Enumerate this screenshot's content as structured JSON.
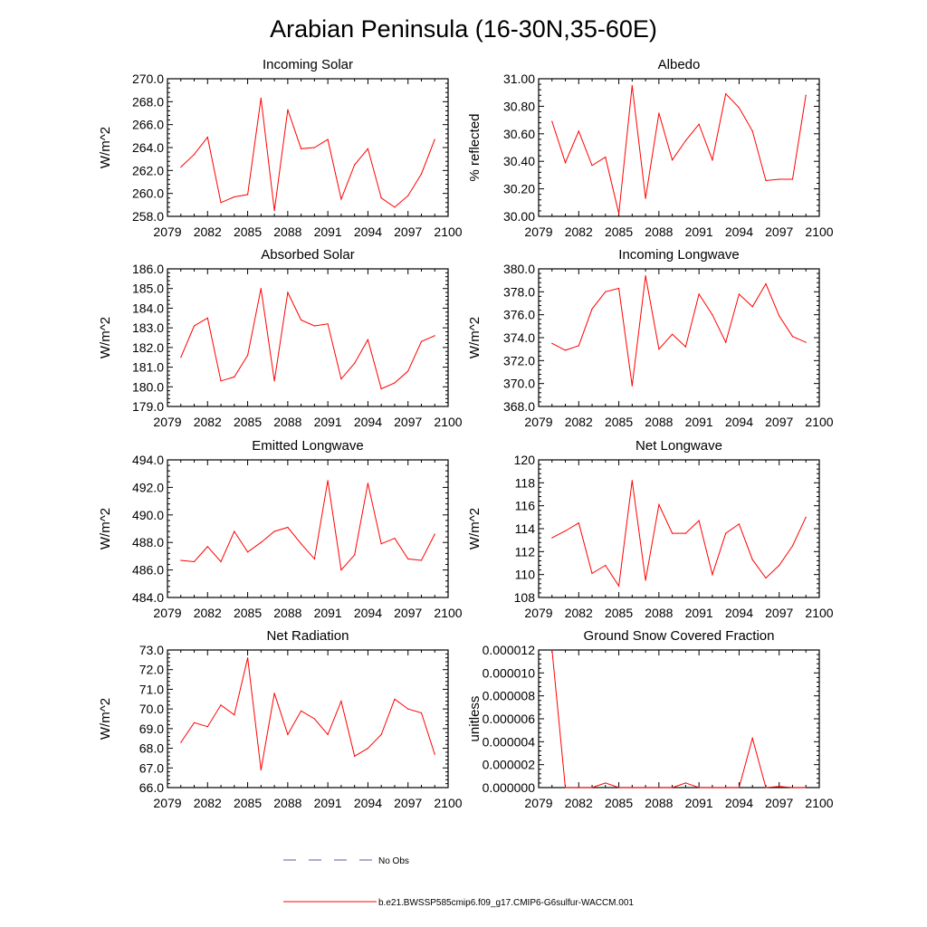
{
  "title": "Arabian Peninsula (16-30N,35-60E)",
  "legend": [
    {
      "label": "No Obs",
      "color": "#5a5aa8",
      "style": "dashed"
    },
    {
      "label": "b.e21.BWSSP585cmip6.f09_g17.CMIP6-G6sulfur-WACCM.001",
      "color": "#ff0000",
      "style": "solid"
    }
  ],
  "chart_data": [
    {
      "type": "line",
      "title": "Incoming Solar",
      "ylabel": "W/m^2",
      "xlim": [
        2079,
        2100
      ],
      "ylim": [
        258,
        270
      ],
      "xticks": [
        "2079",
        "2082",
        "2085",
        "2088",
        "2091",
        "2094",
        "2097",
        "2100"
      ],
      "yticks": [
        "258.0",
        "260.0",
        "262.0",
        "264.0",
        "266.0",
        "268.0",
        "270.0"
      ],
      "x": [
        2080,
        2081,
        2082,
        2083,
        2084,
        2085,
        2086,
        2087,
        2088,
        2089,
        2090,
        2091,
        2092,
        2093,
        2094,
        2095,
        2096,
        2097,
        2098,
        2099
      ],
      "series": [
        {
          "color": "#ff0000",
          "values": [
            262.3,
            263.4,
            264.9,
            259.2,
            259.7,
            259.9,
            268.3,
            258.5,
            267.3,
            263.9,
            264.0,
            264.7,
            259.5,
            262.5,
            263.9,
            259.6,
            258.8,
            259.8,
            261.7,
            264.7
          ]
        }
      ]
    },
    {
      "type": "line",
      "title": "Albedo",
      "ylabel": "% reflected",
      "xlim": [
        2079,
        2100
      ],
      "ylim": [
        30.0,
        31.0
      ],
      "xticks": [
        "2079",
        "2082",
        "2085",
        "2088",
        "2091",
        "2094",
        "2097",
        "2100"
      ],
      "yticks": [
        "30.00",
        "30.20",
        "30.40",
        "30.60",
        "30.80",
        "31.00"
      ],
      "x": [
        2080,
        2081,
        2082,
        2083,
        2084,
        2085,
        2086,
        2087,
        2088,
        2089,
        2090,
        2091,
        2092,
        2093,
        2094,
        2095,
        2096,
        2097,
        2098,
        2099
      ],
      "series": [
        {
          "color": "#ff0000",
          "values": [
            30.69,
            30.39,
            30.62,
            30.37,
            30.43,
            30.02,
            30.95,
            30.13,
            30.75,
            30.41,
            30.55,
            30.67,
            30.41,
            30.89,
            30.79,
            30.62,
            30.26,
            30.27,
            30.27,
            30.88
          ]
        }
      ]
    },
    {
      "type": "line",
      "title": "Absorbed Solar",
      "ylabel": "W/m^2",
      "xlim": [
        2079,
        2100
      ],
      "ylim": [
        179.0,
        186.0
      ],
      "xticks": [
        "2079",
        "2082",
        "2085",
        "2088",
        "2091",
        "2094",
        "2097",
        "2100"
      ],
      "yticks": [
        "179.0",
        "180.0",
        "181.0",
        "182.0",
        "183.0",
        "184.0",
        "185.0",
        "186.0"
      ],
      "x": [
        2080,
        2081,
        2082,
        2083,
        2084,
        2085,
        2086,
        2087,
        2088,
        2089,
        2090,
        2091,
        2092,
        2093,
        2094,
        2095,
        2096,
        2097,
        2098,
        2099
      ],
      "series": [
        {
          "color": "#ff0000",
          "values": [
            181.5,
            183.1,
            183.5,
            180.3,
            180.5,
            181.6,
            185.0,
            180.3,
            184.8,
            183.4,
            183.1,
            183.2,
            180.4,
            181.2,
            182.4,
            179.9,
            180.2,
            180.8,
            182.3,
            182.6
          ]
        }
      ]
    },
    {
      "type": "line",
      "title": "Incoming Longwave",
      "ylabel": "W/m^2",
      "xlim": [
        2079,
        2100
      ],
      "ylim": [
        368.0,
        380.0
      ],
      "xticks": [
        "2079",
        "2082",
        "2085",
        "2088",
        "2091",
        "2094",
        "2097",
        "2100"
      ],
      "yticks": [
        "368.0",
        "370.0",
        "372.0",
        "374.0",
        "376.0",
        "378.0",
        "380.0"
      ],
      "x": [
        2080,
        2081,
        2082,
        2083,
        2084,
        2085,
        2086,
        2087,
        2088,
        2089,
        2090,
        2091,
        2092,
        2093,
        2094,
        2095,
        2096,
        2097,
        2098,
        2099
      ],
      "series": [
        {
          "color": "#ff0000",
          "values": [
            373.5,
            372.9,
            373.3,
            376.5,
            378.0,
            378.3,
            369.8,
            379.4,
            373.0,
            374.3,
            373.2,
            377.8,
            376.0,
            373.6,
            377.8,
            376.7,
            378.7,
            375.9,
            374.1,
            373.6
          ]
        }
      ]
    },
    {
      "type": "line",
      "title": "Emitted Longwave",
      "ylabel": "W/m^2",
      "xlim": [
        2079,
        2100
      ],
      "ylim": [
        484.0,
        494.0
      ],
      "xticks": [
        "2079",
        "2082",
        "2085",
        "2088",
        "2091",
        "2094",
        "2097",
        "2100"
      ],
      "yticks": [
        "484.0",
        "486.0",
        "488.0",
        "490.0",
        "492.0",
        "494.0"
      ],
      "x": [
        2080,
        2081,
        2082,
        2083,
        2084,
        2085,
        2086,
        2087,
        2088,
        2089,
        2090,
        2091,
        2092,
        2093,
        2094,
        2095,
        2096,
        2097,
        2098,
        2099
      ],
      "series": [
        {
          "color": "#ff0000",
          "values": [
            486.7,
            486.6,
            487.7,
            486.6,
            488.8,
            487.3,
            488.0,
            488.8,
            489.1,
            487.9,
            486.8,
            492.5,
            486.0,
            487.1,
            492.3,
            487.9,
            488.3,
            486.8,
            486.7,
            488.6
          ]
        }
      ]
    },
    {
      "type": "line",
      "title": "Net Longwave",
      "ylabel": "W/m^2",
      "xlim": [
        2079,
        2100
      ],
      "ylim": [
        108,
        120
      ],
      "xticks": [
        "2079",
        "2082",
        "2085",
        "2088",
        "2091",
        "2094",
        "2097",
        "2100"
      ],
      "yticks": [
        "108",
        "110",
        "112",
        "114",
        "116",
        "118",
        "120"
      ],
      "x": [
        2080,
        2081,
        2082,
        2083,
        2084,
        2085,
        2086,
        2087,
        2088,
        2089,
        2090,
        2091,
        2092,
        2093,
        2094,
        2095,
        2096,
        2097,
        2098,
        2099
      ],
      "series": [
        {
          "color": "#ff0000",
          "values": [
            113.2,
            113.8,
            114.5,
            110.1,
            110.8,
            109.0,
            118.2,
            109.5,
            116.1,
            113.6,
            113.6,
            114.7,
            110.0,
            113.6,
            114.4,
            111.3,
            109.7,
            110.8,
            112.5,
            115.0
          ]
        }
      ]
    },
    {
      "type": "line",
      "title": "Net Radiation",
      "ylabel": "W/m^2",
      "xlim": [
        2079,
        2100
      ],
      "ylim": [
        66.0,
        73.0
      ],
      "xticks": [
        "2079",
        "2082",
        "2085",
        "2088",
        "2091",
        "2094",
        "2097",
        "2100"
      ],
      "yticks": [
        "66.0",
        "67.0",
        "68.0",
        "69.0",
        "70.0",
        "71.0",
        "72.0",
        "73.0"
      ],
      "x": [
        2080,
        2081,
        2082,
        2083,
        2084,
        2085,
        2086,
        2087,
        2088,
        2089,
        2090,
        2091,
        2092,
        2093,
        2094,
        2095,
        2096,
        2097,
        2098,
        2099
      ],
      "series": [
        {
          "color": "#ff0000",
          "values": [
            68.3,
            69.3,
            69.1,
            70.2,
            69.7,
            72.6,
            66.9,
            70.8,
            68.7,
            69.9,
            69.5,
            68.7,
            70.4,
            67.6,
            68.0,
            68.7,
            70.5,
            70.0,
            69.8,
            67.7
          ]
        }
      ]
    },
    {
      "type": "line",
      "title": "Ground Snow Covered Fraction",
      "ylabel": "unitless",
      "xlim": [
        2079,
        2100
      ],
      "ylim": [
        0.0,
        1.2e-05
      ],
      "xticks": [
        "2079",
        "2082",
        "2085",
        "2088",
        "2091",
        "2094",
        "2097",
        "2100"
      ],
      "yticks": [
        "0.000000",
        "0.000002",
        "0.000004",
        "0.000006",
        "0.000008",
        "0.000010",
        "0.000012"
      ],
      "x": [
        2080,
        2081,
        2082,
        2083,
        2084,
        2085,
        2086,
        2087,
        2088,
        2089,
        2090,
        2091,
        2092,
        2093,
        2094,
        2095,
        2096,
        2097,
        2098,
        2099
      ],
      "series": [
        {
          "color": "#ff0000",
          "values": [
            1.2e-05,
            0.0,
            0.0,
            0.0,
            4e-07,
            0.0,
            0.0,
            0.0,
            0.0,
            0.0,
            4e-07,
            0.0,
            0.0,
            0.0,
            0.0,
            4.3e-06,
            0.0,
            1e-07,
            0.0,
            0.0
          ]
        }
      ]
    }
  ]
}
